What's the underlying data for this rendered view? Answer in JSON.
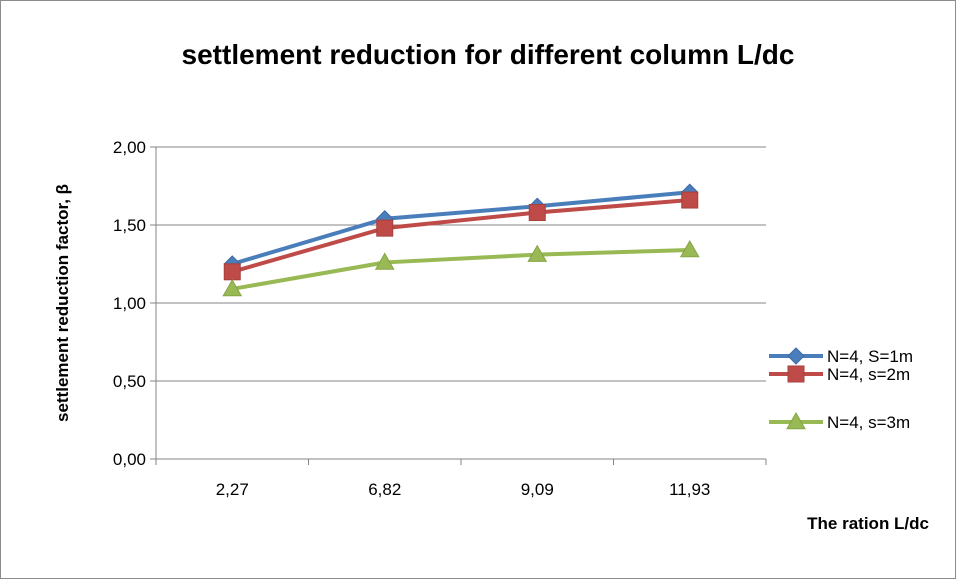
{
  "chart_data": {
    "type": "line",
    "title": "settlement reduction for different column L/dc",
    "xlabel": "The ration L/dc",
    "ylabel": "settlement reduction factor, β",
    "categories": [
      "2,27",
      "6,82",
      "9,09",
      "11,93"
    ],
    "ylim": [
      0,
      2
    ],
    "yticks": [
      "0,00",
      "0,50",
      "1,00",
      "1,50",
      "2,00"
    ],
    "grid": "horizontal",
    "legend_position": "right",
    "series": [
      {
        "name": "N=4, S=1m",
        "values": [
          1.25,
          1.54,
          1.62,
          1.71
        ],
        "color": "#4a7ebb",
        "marker": "diamond"
      },
      {
        "name": "N=4, s=2m",
        "values": [
          1.2,
          1.48,
          1.58,
          1.66
        ],
        "color": "#be4b48",
        "marker": "square"
      },
      {
        "name": "N=4, s=3m",
        "values": [
          1.09,
          1.26,
          1.31,
          1.34
        ],
        "color": "#98b954",
        "marker": "triangle"
      }
    ]
  }
}
